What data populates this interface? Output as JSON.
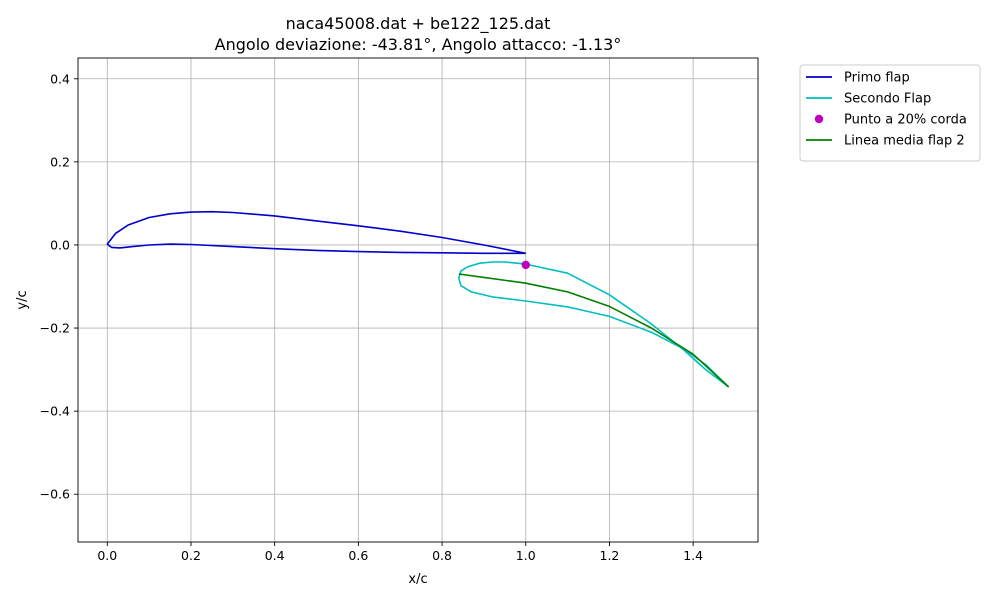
{
  "chart_data": {
    "type": "line",
    "title": "naca45008.dat + be122_125.dat",
    "subtitle": "Angolo deviazione: -43.81°, Angolo attacco: -1.13°",
    "xlabel": "x/c",
    "ylabel": "y/c",
    "xlim": [
      -0.07,
      1.555
    ],
    "ylim": [
      -0.715,
      0.45
    ],
    "xticks": [
      0.0,
      0.2,
      0.4,
      0.6,
      0.8,
      1.0,
      1.2,
      1.4
    ],
    "xtick_labels": [
      "0.0",
      "0.2",
      "0.4",
      "0.6",
      "0.8",
      "1.0",
      "1.2",
      "1.4"
    ],
    "yticks": [
      0.4,
      0.2,
      0.0,
      -0.2,
      -0.4,
      -0.6
    ],
    "ytick_labels": [
      "0.4",
      "0.2",
      "0.0",
      "−0.2",
      "−0.4",
      "−0.6"
    ],
    "grid": true,
    "legend_position": "outside-top-right",
    "series": [
      {
        "name": "Primo flap",
        "type": "line",
        "color": "#0000cc",
        "x": [
          1.0,
          0.9,
          0.8,
          0.7,
          0.6,
          0.5,
          0.4,
          0.3,
          0.25,
          0.2,
          0.15,
          0.1,
          0.05,
          0.02,
          0.0,
          0.01,
          0.03,
          0.06,
          0.1,
          0.15,
          0.2,
          0.3,
          0.4,
          0.5,
          0.6,
          0.7,
          0.8,
          0.9,
          1.0
        ],
        "y": [
          -0.02,
          0.0,
          0.018,
          0.033,
          0.046,
          0.058,
          0.07,
          0.078,
          0.08,
          0.079,
          0.075,
          0.066,
          0.048,
          0.028,
          0.002,
          -0.006,
          -0.007,
          -0.004,
          0.0,
          0.002,
          0.001,
          -0.004,
          -0.009,
          -0.013,
          -0.016,
          -0.018,
          -0.019,
          -0.02,
          -0.02
        ]
      },
      {
        "name": "Secondo Flap",
        "type": "line",
        "color": "#00bfbf",
        "x": [
          1.485,
          1.43,
          1.38,
          1.3,
          1.2,
          1.1,
          1.0,
          0.95,
          0.92,
          0.89,
          0.86,
          0.845,
          0.84,
          0.845,
          0.87,
          0.92,
          1.0,
          1.1,
          1.2,
          1.3,
          1.38,
          1.43,
          1.485
        ],
        "y": [
          -0.342,
          -0.3,
          -0.255,
          -0.19,
          -0.12,
          -0.068,
          -0.046,
          -0.041,
          -0.041,
          -0.044,
          -0.053,
          -0.063,
          -0.08,
          -0.098,
          -0.113,
          -0.125,
          -0.135,
          -0.149,
          -0.172,
          -0.21,
          -0.252,
          -0.288,
          -0.342
        ]
      },
      {
        "name": "Punto a 20% corda",
        "type": "scatter",
        "color": "#bf00bf",
        "x": [
          1.0
        ],
        "y": [
          -0.048
        ]
      },
      {
        "name": "Linea media flap 2",
        "type": "line",
        "color": "#008000",
        "x": [
          0.84,
          0.9,
          1.0,
          1.1,
          1.2,
          1.3,
          1.4,
          1.485
        ],
        "y": [
          -0.07,
          -0.078,
          -0.092,
          -0.113,
          -0.148,
          -0.2,
          -0.263,
          -0.342
        ]
      }
    ]
  }
}
